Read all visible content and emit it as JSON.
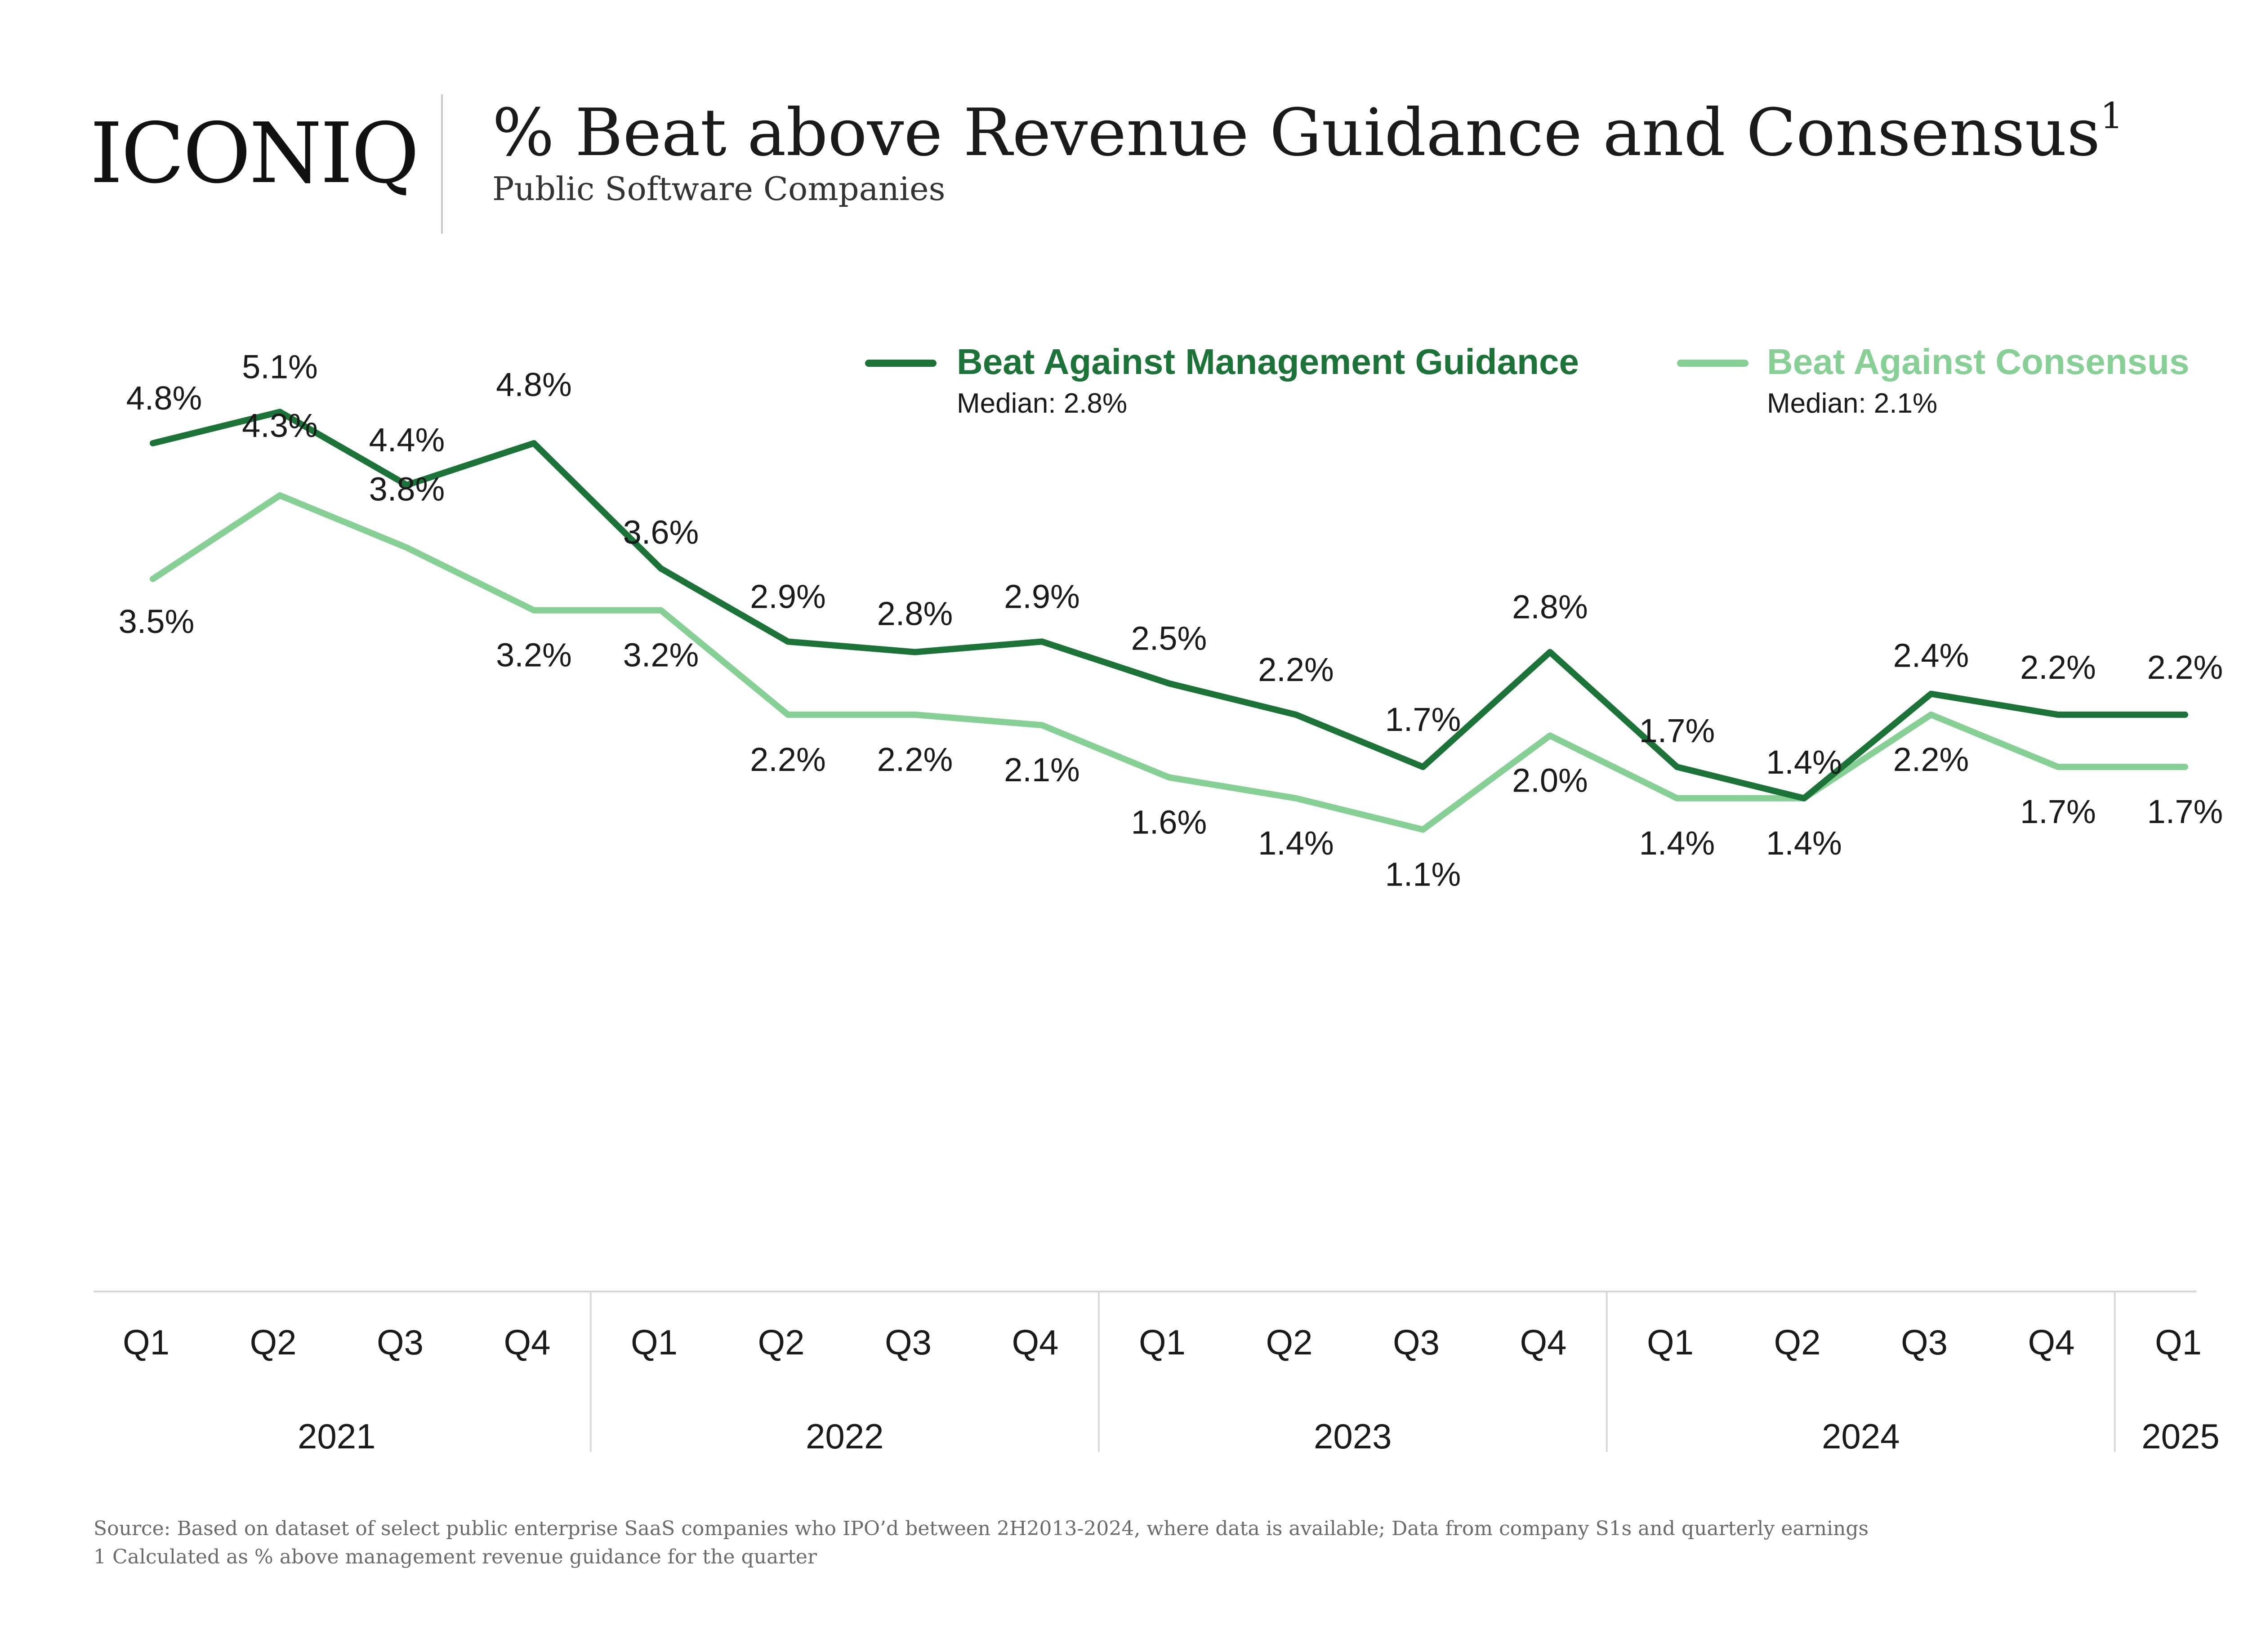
{
  "header": {
    "logo_text": "ICONIQ",
    "title": "% Beat above Revenue Guidance and Consensus",
    "title_sup": "1",
    "subtitle": "Public Software Companies"
  },
  "colors": {
    "guidance": "#1c7338",
    "consensus": "#86cf95",
    "text": "#1a1a1a",
    "muted": "#6b6b6b",
    "axis": "#cfcfcf"
  },
  "chart_data": {
    "type": "line",
    "categories": [
      "Q1",
      "Q2",
      "Q3",
      "Q4",
      "Q1",
      "Q2",
      "Q3",
      "Q4",
      "Q1",
      "Q2",
      "Q3",
      "Q4",
      "Q1",
      "Q2",
      "Q3",
      "Q4",
      "Q1"
    ],
    "groups": [
      {
        "label": "2021",
        "count": 4
      },
      {
        "label": "2022",
        "count": 4
      },
      {
        "label": "2023",
        "count": 4
      },
      {
        "label": "2024",
        "count": 4
      },
      {
        "label": "2025",
        "count": 1
      }
    ],
    "series": [
      {
        "name": "Beat Against Management Guidance",
        "median_label": "Median: 2.8%",
        "values": [
          4.8,
          5.1,
          4.4,
          4.8,
          3.6,
          2.9,
          2.8,
          2.9,
          2.5,
          2.2,
          1.7,
          2.8,
          1.7,
          1.4,
          2.4,
          2.2,
          2.2
        ],
        "labels": [
          "4.8%",
          "5.1%",
          "4.4%",
          "4.8%",
          "3.6%",
          "2.9%",
          "2.8%",
          "2.9%",
          "2.5%",
          "2.2%",
          "1.7%",
          "2.8%",
          "1.7%",
          "1.4%",
          "2.4%",
          "2.2%",
          "2.2%"
        ]
      },
      {
        "name": "Beat Against Consensus",
        "median_label": "Median: 2.1%",
        "values": [
          3.5,
          4.3,
          3.8,
          3.2,
          3.2,
          2.2,
          2.2,
          2.1,
          1.6,
          1.4,
          1.1,
          2.0,
          1.4,
          1.4,
          2.2,
          1.7,
          1.7
        ],
        "labels": [
          "3.5%",
          "4.3%",
          "3.8%",
          "3.2%",
          "3.2%",
          "2.2%",
          "2.2%",
          "2.1%",
          "1.6%",
          "1.4%",
          "1.1%",
          "2.0%",
          "1.4%",
          "1.4%",
          "2.2%",
          "1.7%",
          "1.7%"
        ]
      }
    ],
    "legend_position": "top-right",
    "grid": false,
    "ylim": [
      0,
      6
    ]
  },
  "footer": {
    "source": "Source: Based on dataset of select public enterprise SaaS companies who IPO’d between 2H2013-2024, where data is available; Data from company S1s and quarterly earnings",
    "note": "1 Calculated as % above management revenue guidance for the quarter"
  }
}
